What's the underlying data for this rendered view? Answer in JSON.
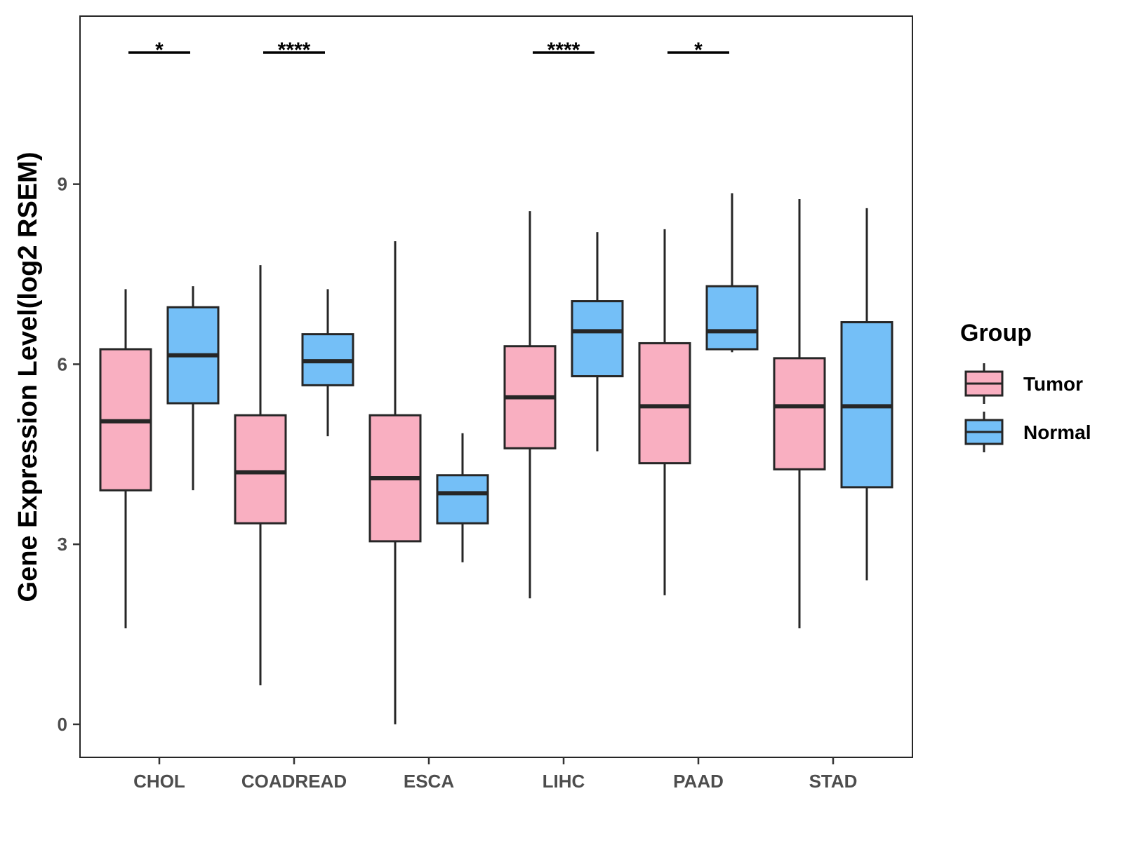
{
  "chart_data": {
    "type": "boxplot",
    "title": "",
    "xlabel": "",
    "ylabel": "Gene Expression Level(log2 RSEM)",
    "ylim": [
      -0.55,
      11.8
    ],
    "yticks": [
      0,
      3,
      6,
      9
    ],
    "grid": false,
    "categories": [
      "CHOL",
      "COADREAD",
      "ESCA",
      "LIHC",
      "PAAD",
      "STAD"
    ],
    "legend": {
      "title": "Group",
      "position": "right",
      "entries": [
        {
          "name": "Tumor",
          "color": "#f9afc1"
        },
        {
          "name": "Normal",
          "color": "#74bff7"
        }
      ]
    },
    "series": [
      {
        "name": "Tumor",
        "color": "#f9afc1",
        "boxes": [
          {
            "category": "CHOL",
            "min": 1.6,
            "q1": 3.9,
            "median": 5.05,
            "q3": 6.25,
            "max": 7.25
          },
          {
            "category": "COADREAD",
            "min": 0.65,
            "q1": 3.35,
            "median": 4.2,
            "q3": 5.15,
            "max": 7.65
          },
          {
            "category": "ESCA",
            "min": 0.0,
            "q1": 3.05,
            "median": 4.1,
            "q3": 5.15,
            "max": 8.05
          },
          {
            "category": "LIHC",
            "min": 2.1,
            "q1": 4.6,
            "median": 5.45,
            "q3": 6.3,
            "max": 8.55
          },
          {
            "category": "PAAD",
            "min": 2.15,
            "q1": 4.35,
            "median": 5.3,
            "q3": 6.35,
            "max": 8.25
          },
          {
            "category": "STAD",
            "min": 1.6,
            "q1": 4.25,
            "median": 5.3,
            "q3": 6.1,
            "max": 8.75
          }
        ]
      },
      {
        "name": "Normal",
        "color": "#74bff7",
        "boxes": [
          {
            "category": "CHOL",
            "min": 3.9,
            "q1": 5.35,
            "median": 6.15,
            "q3": 6.95,
            "max": 7.3
          },
          {
            "category": "COADREAD",
            "min": 4.8,
            "q1": 5.65,
            "median": 6.05,
            "q3": 6.5,
            "max": 7.25
          },
          {
            "category": "ESCA",
            "min": 2.7,
            "q1": 3.35,
            "median": 3.85,
            "q3": 4.15,
            "max": 4.85
          },
          {
            "category": "LIHC",
            "min": 4.55,
            "q1": 5.8,
            "median": 6.55,
            "q3": 7.05,
            "max": 8.2
          },
          {
            "category": "PAAD",
            "min": 6.2,
            "q1": 6.25,
            "median": 6.55,
            "q3": 7.3,
            "max": 8.85
          },
          {
            "category": "STAD",
            "min": 2.4,
            "q1": 3.95,
            "median": 5.3,
            "q3": 6.7,
            "max": 8.6
          }
        ]
      }
    ],
    "significance": [
      {
        "category": "CHOL",
        "label": "*"
      },
      {
        "category": "COADREAD",
        "label": "****"
      },
      {
        "category": "LIHC",
        "label": "****"
      },
      {
        "category": "PAAD",
        "label": "*"
      }
    ]
  }
}
